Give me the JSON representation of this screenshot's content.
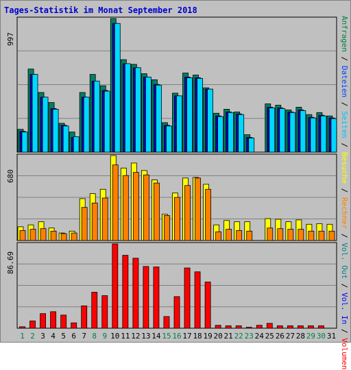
{
  "title": "Tages-Statistik im Monat September 2018",
  "side_label": [
    {
      "text": "Anfragen",
      "color": "#008040"
    },
    {
      "text": " / ",
      "color": "#000000"
    },
    {
      "text": "Dateien",
      "color": "#0040ff"
    },
    {
      "text": " / ",
      "color": "#000000"
    },
    {
      "text": "Seiten",
      "color": "#00c0ff"
    },
    {
      "text": " / ",
      "color": "#000000"
    },
    {
      "text": "Besuche",
      "color": "#ffff00"
    },
    {
      "text": " / ",
      "color": "#000000"
    },
    {
      "text": "Rechner",
      "color": "#ff8000"
    },
    {
      "text": " / ",
      "color": "#000000"
    },
    {
      "text": "Vol. Out",
      "color": "#008080"
    },
    {
      "text": " / ",
      "color": "#000000"
    },
    {
      "text": "Vol. In",
      "color": "#0000ff"
    },
    {
      "text": " / ",
      "color": "#000000"
    },
    {
      "text": "Volumen",
      "color": "#ff0000"
    }
  ],
  "axis_max_labels": {
    "top": "997",
    "middle": "680",
    "bottom": "86.69"
  },
  "chart_data": [
    {
      "type": "bar",
      "title": "Tages-Statistik im Monat September 2018",
      "categories": [
        "1",
        "2",
        "3",
        "4",
        "5",
        "6",
        "7",
        "8",
        "9",
        "10",
        "11",
        "12",
        "13",
        "14",
        "15",
        "16",
        "17",
        "18",
        "19",
        "20",
        "21",
        "22",
        "23",
        "24",
        "25",
        "26",
        "27",
        "28",
        "29",
        "30",
        "31"
      ],
      "weekend_days": [
        "1",
        "2",
        "8",
        "9",
        "15",
        "16",
        "22",
        "23",
        "29",
        "30"
      ],
      "ylim": [
        0,
        997
      ],
      "grid": true,
      "series": [
        {
          "name": "Anfragen",
          "color": "#008060",
          "values": [
            170,
            620,
            445,
            370,
            215,
            150,
            445,
            580,
            495,
            997,
            690,
            655,
            585,
            540,
            220,
            440,
            590,
            575,
            480,
            290,
            320,
            300,
            130,
            0,
            360,
            350,
            315,
            335,
            280,
            295,
            270
          ]
        },
        {
          "name": "Dateien",
          "color": "#0000c0",
          "values": [
            155,
            580,
            410,
            325,
            200,
            110,
            410,
            530,
            460,
            960,
            660,
            630,
            560,
            505,
            200,
            420,
            560,
            555,
            470,
            270,
            300,
            285,
            110,
            0,
            335,
            330,
            300,
            315,
            260,
            275,
            255
          ]
        },
        {
          "name": "Seiten",
          "color": "#00d8ff",
          "values": [
            150,
            580,
            410,
            320,
            195,
            115,
            410,
            530,
            455,
            960,
            660,
            630,
            560,
            500,
            195,
            420,
            555,
            550,
            470,
            265,
            295,
            280,
            105,
            0,
            330,
            325,
            295,
            310,
            255,
            270,
            250
          ]
        }
      ]
    },
    {
      "type": "bar",
      "categories": [
        "1",
        "2",
        "3",
        "4",
        "5",
        "6",
        "7",
        "8",
        "9",
        "10",
        "11",
        "12",
        "13",
        "14",
        "15",
        "16",
        "17",
        "18",
        "19",
        "20",
        "21",
        "22",
        "23",
        "24",
        "25",
        "26",
        "27",
        "28",
        "29",
        "30",
        "31"
      ],
      "ylim": [
        0,
        680
      ],
      "grid": true,
      "series": [
        {
          "name": "Besuche",
          "color": "#ffff00",
          "values": [
            110,
            125,
            150,
            100,
            60,
            75,
            335,
            375,
            410,
            680,
            580,
            620,
            560,
            485,
            210,
            380,
            500,
            505,
            450,
            125,
            160,
            150,
            150,
            0,
            175,
            170,
            150,
            165,
            130,
            135,
            130
          ]
        },
        {
          "name": "Rechner",
          "color": "#ff8000",
          "values": [
            80,
            90,
            95,
            75,
            55,
            60,
            265,
            300,
            340,
            605,
            520,
            545,
            525,
            460,
            200,
            345,
            440,
            500,
            410,
            70,
            90,
            80,
            75,
            0,
            100,
            95,
            90,
            90,
            75,
            75,
            75
          ]
        }
      ]
    },
    {
      "type": "bar",
      "categories": [
        "1",
        "2",
        "3",
        "4",
        "5",
        "6",
        "7",
        "8",
        "9",
        "10",
        "11",
        "12",
        "13",
        "14",
        "15",
        "16",
        "17",
        "18",
        "19",
        "20",
        "21",
        "22",
        "23",
        "24",
        "25",
        "26",
        "27",
        "28",
        "29",
        "30",
        "31"
      ],
      "ylim": [
        0,
        86.69
      ],
      "grid": true,
      "series": [
        {
          "name": "Volumen",
          "color": "#ff0000",
          "values": [
            1.5,
            7.5,
            15,
            17,
            13.5,
            5.5,
            23,
            37,
            33.5,
            86.69,
            75,
            72,
            63.5,
            63,
            12,
            32.5,
            62,
            58,
            47.5,
            3,
            2.5,
            2.5,
            1,
            3,
            5,
            2.5,
            2.5,
            2.5,
            2.5,
            2.5,
            0
          ]
        }
      ]
    }
  ]
}
